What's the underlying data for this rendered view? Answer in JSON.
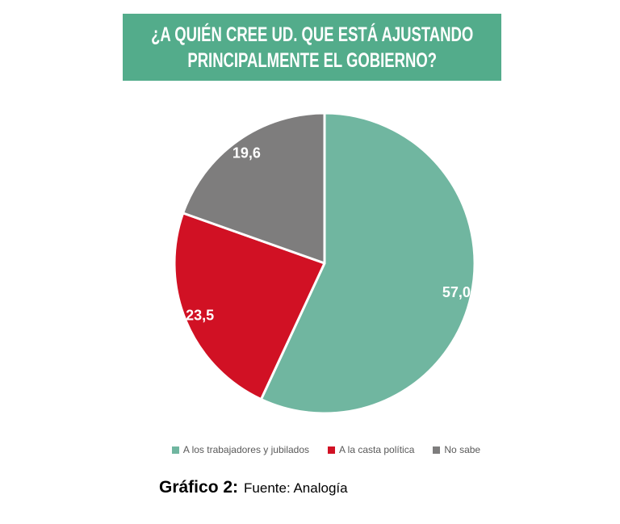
{
  "banner": {
    "title_line1": "¿A QUIÉN CREE UD. QUE ESTÁ AJUSTANDO",
    "title_line2": "PRINCIPALMENTE EL GOBIERNO?",
    "bg_color": "#53AC8B",
    "text_color": "#FFFFFF"
  },
  "chart_data": {
    "type": "pie",
    "title": "¿A QUIÉN CREE UD. QUE ESTÁ AJUSTANDO PRINCIPALMENTE EL GOBIERNO?",
    "categories": [
      "A los trabajadores y jubilados",
      "A la casta política",
      "No sabe"
    ],
    "values": [
      57.0,
      23.5,
      19.6
    ],
    "value_labels": [
      "57,0",
      "23,5",
      "19,6"
    ],
    "colors": [
      "#70B6A0",
      "#D11124",
      "#7E7D7D"
    ],
    "start_angle_deg": 0,
    "direction": "clockwise",
    "slice_border_color": "#FFFFFF",
    "slice_border_width": 3,
    "label_color": "#FFFFFF",
    "label_radius_ratio": 0.9,
    "legend_position": "bottom",
    "grid": false
  },
  "legend": {
    "text_color": "#595959",
    "items": [
      {
        "label": "A los trabajadores y jubilados",
        "color": "#70B6A0"
      },
      {
        "label": "A la casta política",
        "color": "#D11124"
      },
      {
        "label": "No sabe",
        "color": "#7E7D7D"
      }
    ]
  },
  "caption": {
    "title": "Gráfico 2:",
    "source": "Fuente: Analogía"
  }
}
